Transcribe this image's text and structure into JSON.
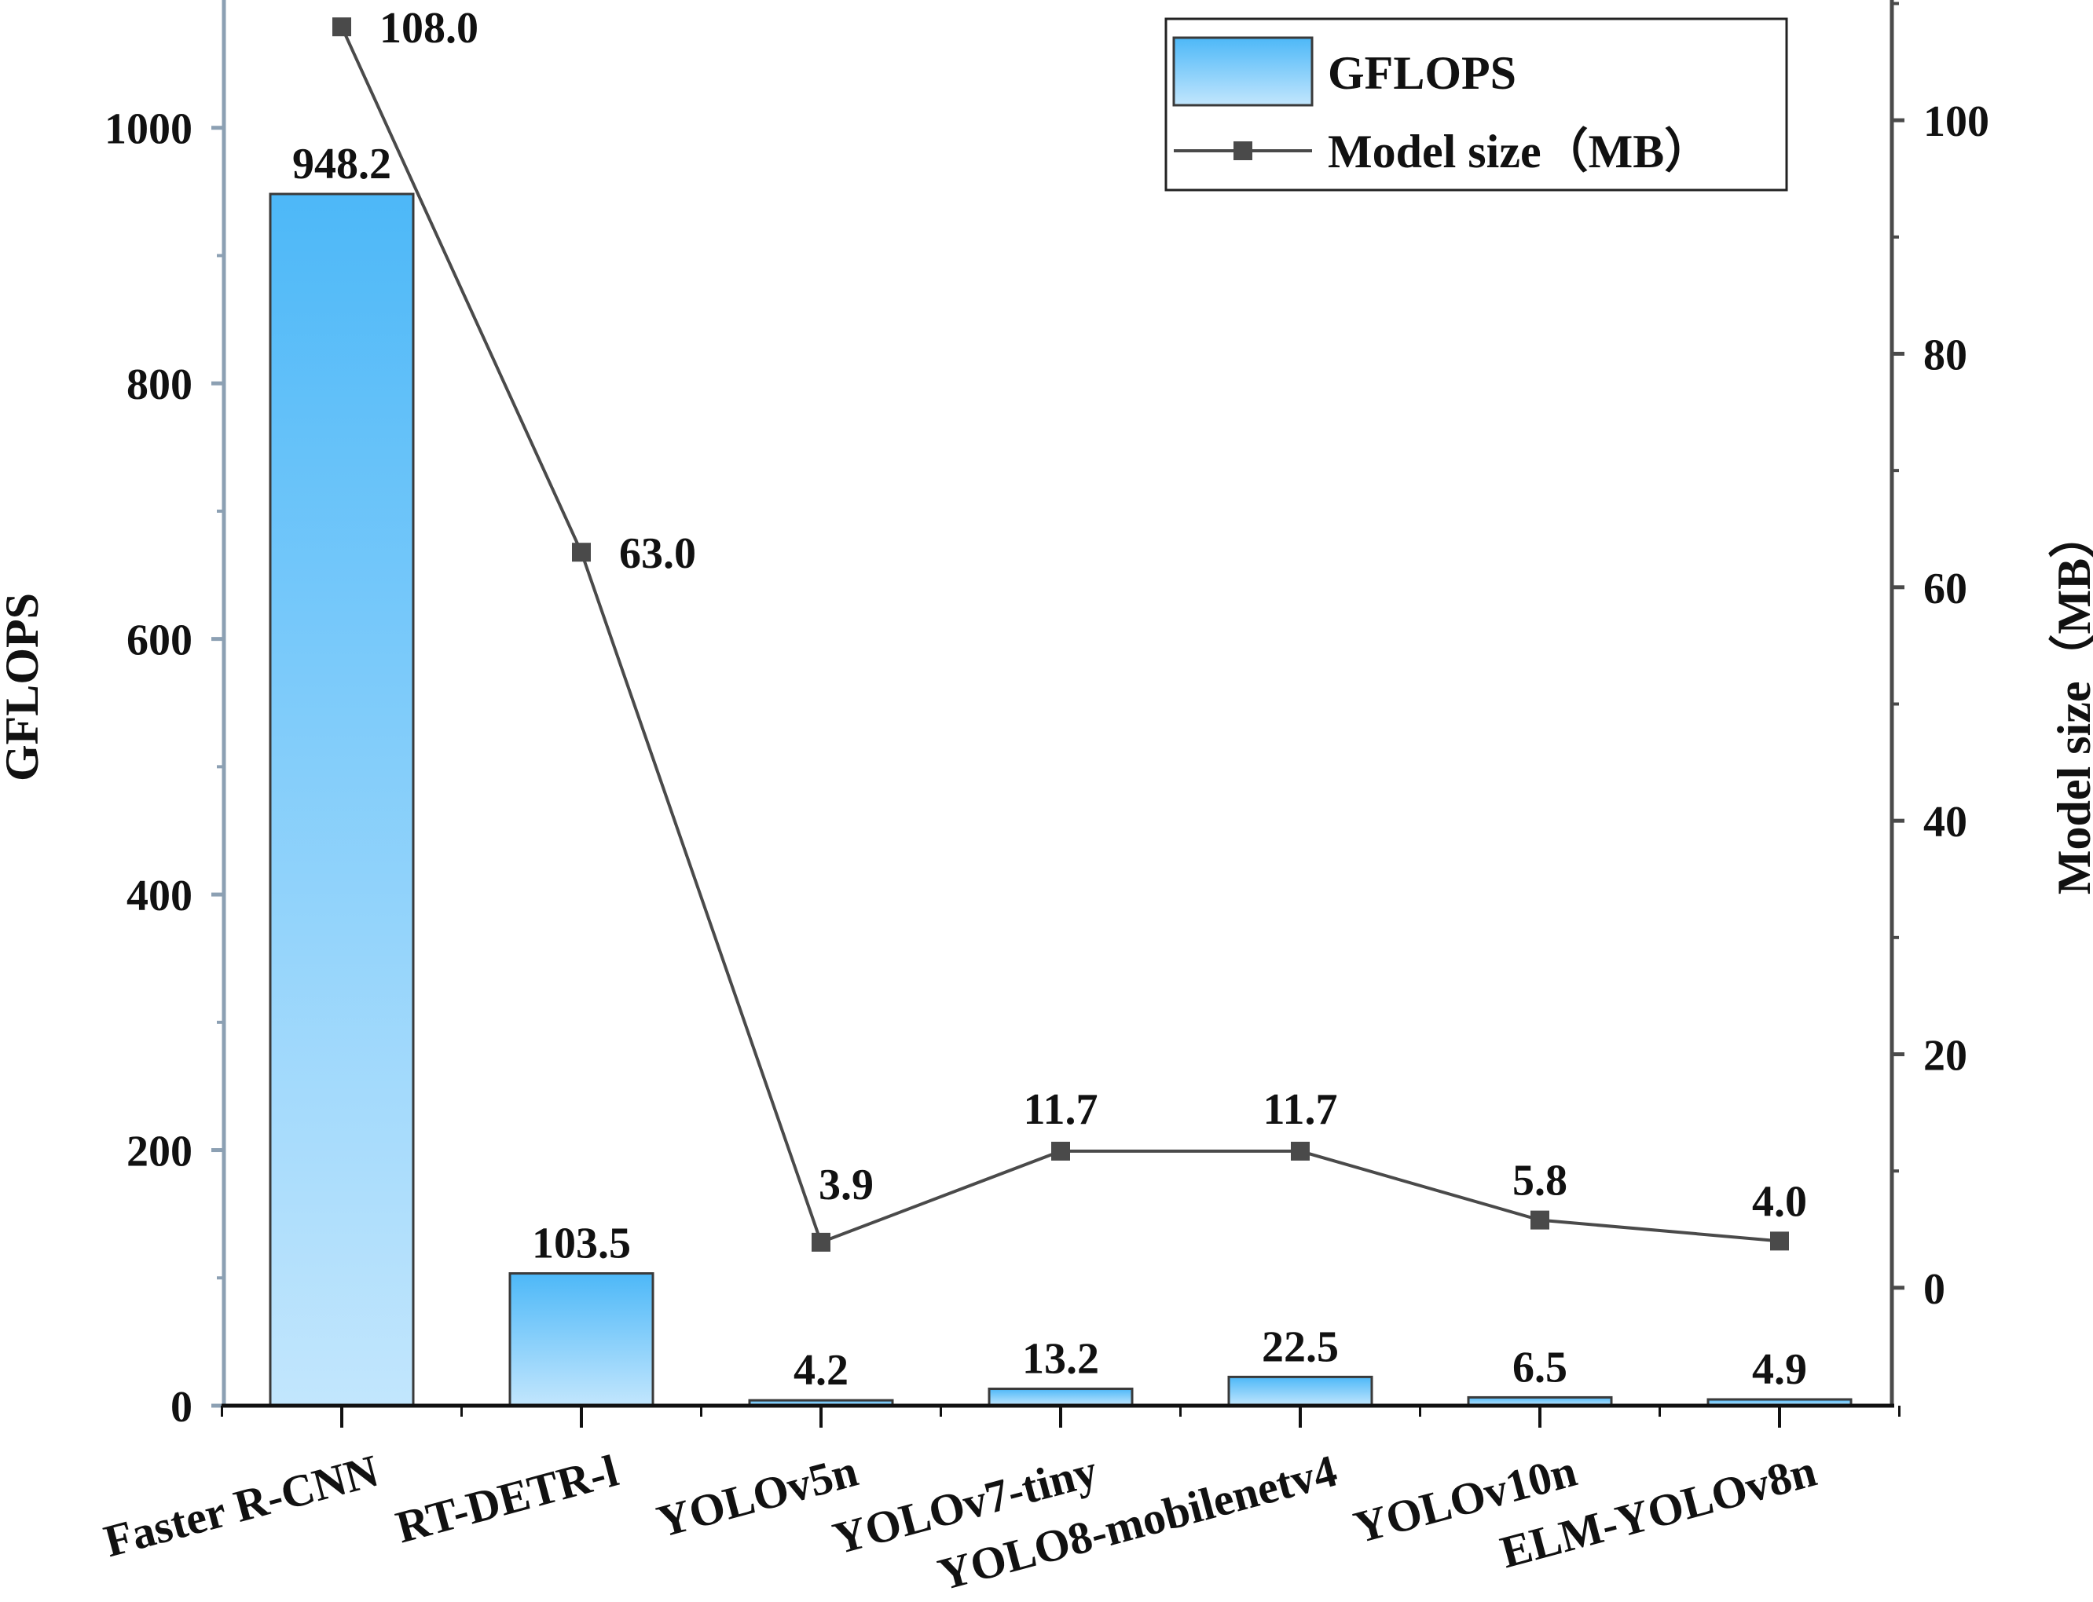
{
  "chart_data": {
    "type": "bar",
    "categories": [
      "Faster R-CNN",
      "RT-DETR-l",
      "YOLOv5n",
      "YOLOv7-tiny",
      "YOLO8-mobilenetv4",
      "YOLOv10n",
      "ELM-YOLOv8n"
    ],
    "series": [
      {
        "name": "GFLOPS",
        "type": "bar",
        "axis": "left",
        "values": [
          948.2,
          103.5,
          4.2,
          13.2,
          22.5,
          6.5,
          4.9
        ],
        "labels": [
          "948.2",
          "103.5",
          "4.2",
          "13.2",
          "22.5",
          "6.5",
          "4.9"
        ],
        "color_top": "#4db8f8",
        "color_bottom": "#c2e6fd"
      },
      {
        "name": "Model size（MB）",
        "type": "line",
        "axis": "right",
        "values": [
          108.0,
          63.0,
          3.9,
          11.7,
          11.7,
          5.8,
          4.0
        ],
        "labels": [
          "108.0",
          "63.0",
          "3.9",
          "11.7",
          "11.7",
          "5.8",
          "4.0"
        ],
        "color": "#4a4a4a"
      }
    ],
    "ylabel": "GFLOPS",
    "y2label": "Model size（MB）",
    "ylim": [
      0,
      1100
    ],
    "y2lim": [
      -10.1,
      110.3
    ],
    "yticks": [
      0,
      200,
      400,
      600,
      800,
      1000
    ],
    "y2ticks": [
      0,
      20,
      40,
      60,
      80,
      100
    ],
    "legend": {
      "position": "top-right",
      "items": [
        "GFLOPS",
        "Model size（MB）"
      ]
    },
    "grid": false
  },
  "colors": {
    "left_axis": "#8ca0b3",
    "right_axis": "#4a4a4a",
    "bottom_axis": "#111111",
    "bar_edge": "#3a3a3a"
  }
}
